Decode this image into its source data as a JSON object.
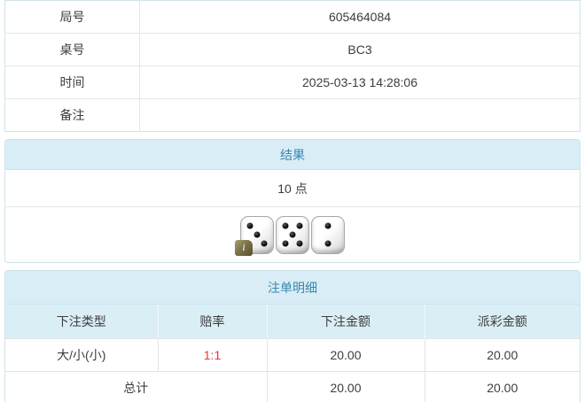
{
  "info_table": {
    "rows": [
      {
        "label": "局号",
        "value": "605464084"
      },
      {
        "label": "桌号",
        "value": "BC3"
      },
      {
        "label": "时间",
        "value": "2025-03-13 14:28:06"
      },
      {
        "label": "备注",
        "value": ""
      }
    ]
  },
  "result_panel": {
    "title": "结果",
    "points": "10 点",
    "dice": [
      3,
      5,
      2
    ],
    "info_badge": "i"
  },
  "bets_panel": {
    "title": "注单明细",
    "columns": [
      "下注类型",
      "赔率",
      "下注金额",
      "派彩金额"
    ],
    "rows": [
      {
        "type": "大/小(小)",
        "odds": "1:1",
        "bet_amount": "20.00",
        "payout_amount": "20.00"
      }
    ],
    "total": {
      "label": "总计",
      "bet_amount": "20.00",
      "payout_amount": "20.00"
    }
  },
  "colors": {
    "header_bg": "#d9edf7",
    "header_text": "#3a87ad",
    "odds_red": "#e8363b",
    "panel_border": "#cfe3ea",
    "row_border": "#e3e3e3",
    "body_text": "#3d3d3d"
  }
}
